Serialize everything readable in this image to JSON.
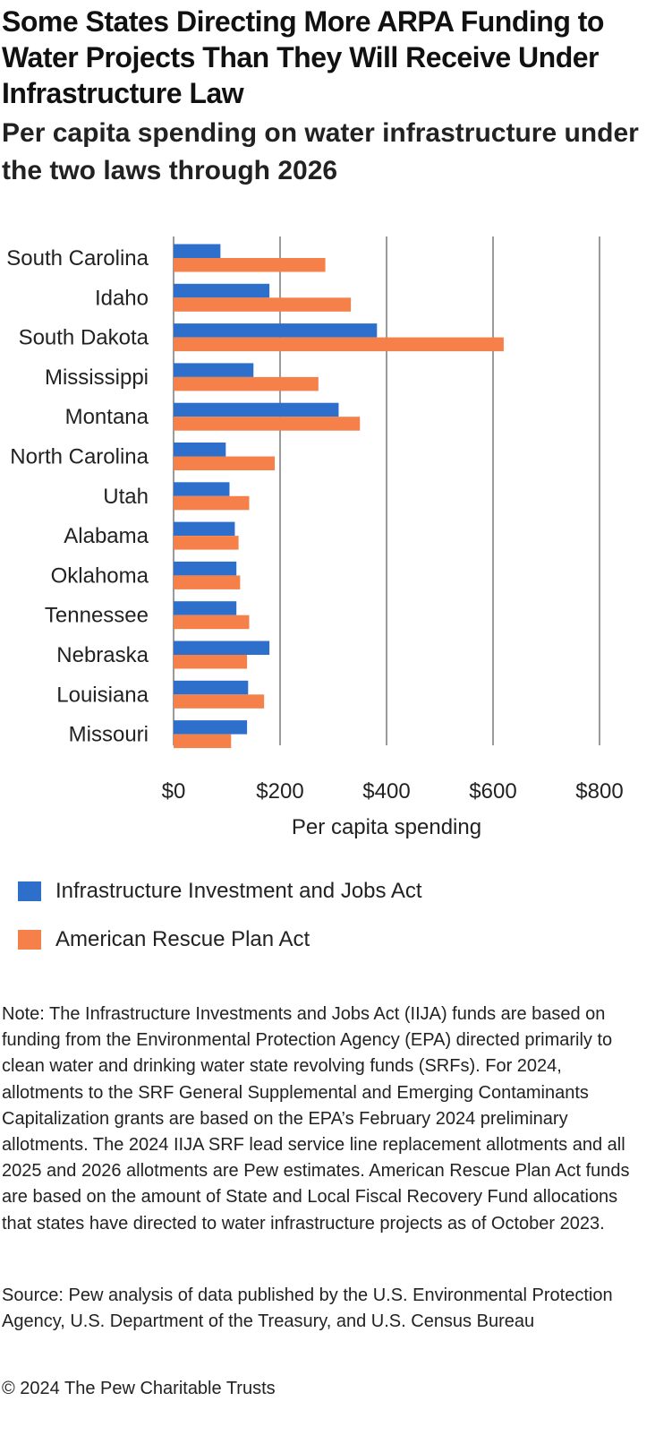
{
  "title": "Some States Directing More ARPA Funding to Water Projects Than They Will Receive Under Infrastructure Law",
  "subtitle": "Per capita spending on water infrastructure under the two laws through 2026",
  "colors": {
    "iija": "#2e6fcc",
    "arpa": "#f5804a",
    "grid": "#9a9a9a",
    "text": "#222222"
  },
  "chart_data": {
    "type": "bar",
    "orientation": "horizontal",
    "categories": [
      "South Carolina",
      "Idaho",
      "South Dakota",
      "Mississippi",
      "Montana",
      "North Carolina",
      "Utah",
      "Alabama",
      "Oklahoma",
      "Tennessee",
      "Nebraska",
      "Louisiana",
      "Missouri"
    ],
    "series": [
      {
        "name": "Infrastructure Investment and Jobs Act",
        "color": "#2e6fcc",
        "values": [
          88,
          180,
          382,
          150,
          310,
          98,
          105,
          115,
          118,
          118,
          180,
          140,
          138
        ]
      },
      {
        "name": "American Rescue Plan Act",
        "color": "#f5804a",
        "values": [
          285,
          333,
          620,
          272,
          350,
          190,
          142,
          122,
          125,
          142,
          138,
          170,
          108
        ]
      }
    ],
    "xlabel": "Per capita spending",
    "ylabel": "",
    "xlim": [
      0,
      800
    ],
    "xticks": [
      "$0",
      "$200",
      "$400",
      "$600",
      "$800"
    ],
    "grid": "vertical",
    "legend_position": "bottom"
  },
  "note": "Note: The Infrastructure Investments and Jobs Act (IIJA) funds are based on funding from the Environmental Protection Agency (EPA) directed primarily to clean water and drinking water state revolving funds (SRFs). For 2024, allotments to the SRF General Supplemental and Emerging Contaminants Capitalization grants are based on the EPA’s February 2024 preliminary allotments. The 2024 IIJA SRF lead service line replacement allotments and all 2025 and 2026 allotments are Pew estimates. American Rescue Plan Act funds are based on the amount of State and Local Fiscal Recovery Fund allocations that states have directed to water infrastructure projects as of October 2023.",
  "source": "Source: Pew analysis of data published by the U.S. Environmental Protection Agency, U.S. Department of the Treasury, and U.S. Census Bureau",
  "copyright": "© 2024 The Pew Charitable Trusts"
}
